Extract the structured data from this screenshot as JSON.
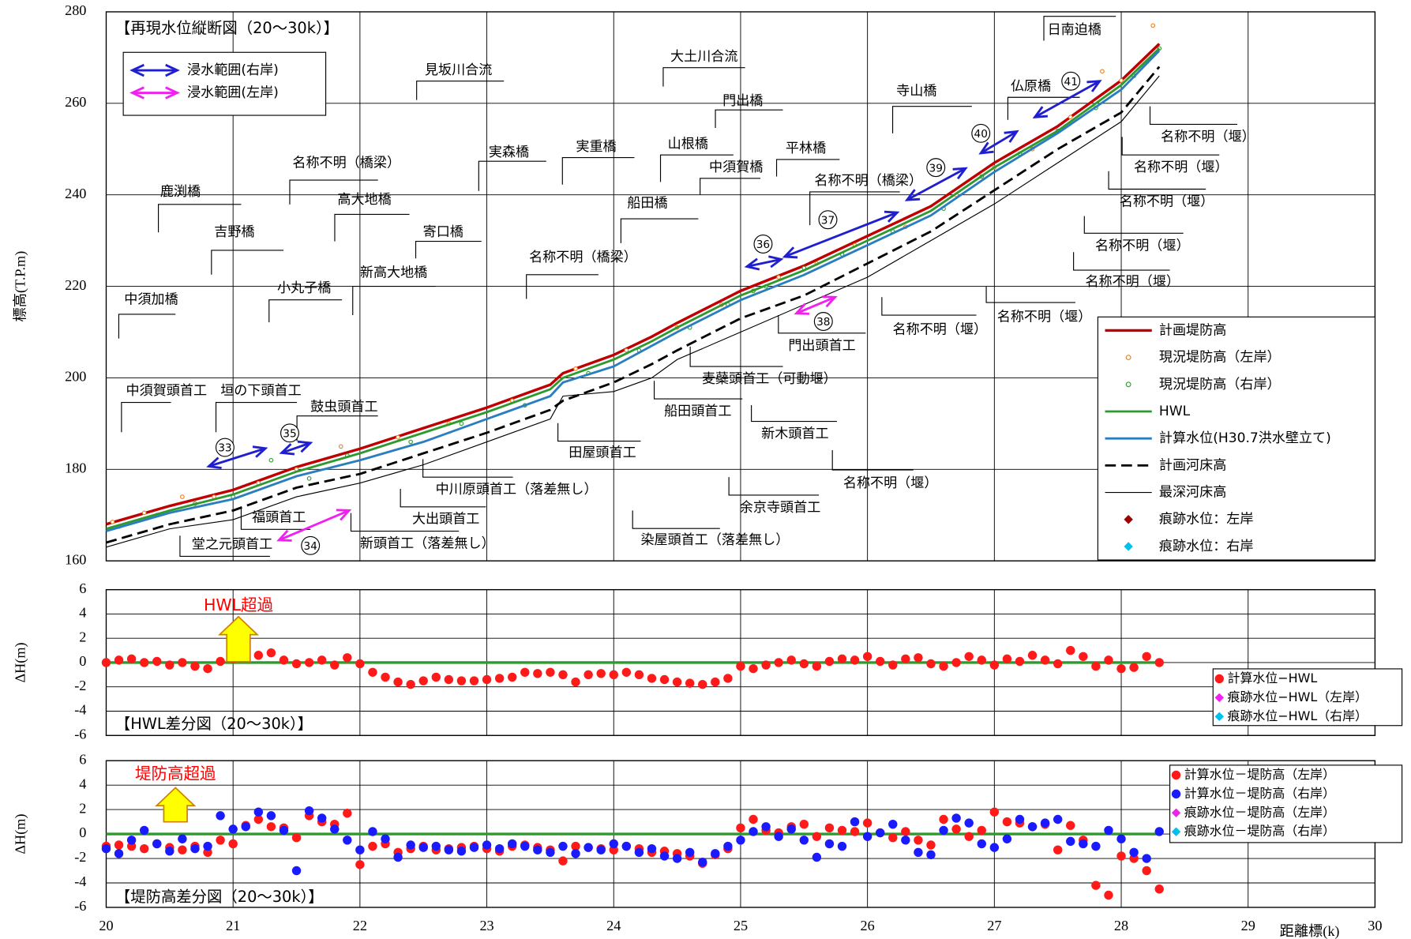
{
  "chart_data": [
    {
      "type": "line",
      "title": "【再現水位縦断図（20～30k）】",
      "y_label": "標高(T.P.m)",
      "xlim": [
        20,
        30
      ],
      "xticks": [
        20,
        21,
        22,
        23,
        24,
        25,
        26,
        27,
        28,
        29,
        30
      ],
      "ylim": [
        160,
        280
      ],
      "yticks": [
        160,
        180,
        200,
        220,
        240,
        260,
        280
      ],
      "grid": true,
      "x": [
        20,
        20.5,
        21,
        21.5,
        22,
        22.5,
        23,
        23.5,
        23.6,
        24,
        24.3,
        24.5,
        25,
        25.5,
        26,
        26.5,
        27,
        27.5,
        28,
        28.3
      ],
      "series": [
        {
          "name": "計画堤防高",
          "type": "line",
          "color": "#c00000",
          "linewidth": 3,
          "values": [
            168,
            172,
            175.5,
            180.5,
            184.5,
            189,
            193.5,
            198.5,
            201,
            205,
            209,
            212,
            219,
            224.5,
            231,
            237.5,
            247,
            255,
            265,
            273
          ]
        },
        {
          "name": "現況堤防高（左岸）",
          "type": "scatter",
          "marker": "circle-open",
          "color": "#f08020",
          "x": [
            20.05,
            20.3,
            20.6,
            20.85,
            21.2,
            21.5,
            21.85,
            22.3,
            22.7,
            23.2,
            23.7,
            24.1,
            24.5,
            24.85,
            25.1,
            25.3,
            25.6,
            25.9,
            26.3,
            26.7,
            27.0,
            27.3,
            27.6,
            27.85,
            28.0,
            28.25
          ],
          "values": [
            168.5,
            170.5,
            174,
            174,
            177,
            180,
            185,
            187,
            190,
            195,
            202,
            206,
            211,
            216,
            219,
            222,
            225,
            229,
            233,
            240,
            246,
            250,
            257,
            267,
            265,
            277
          ]
        },
        {
          "name": "現況堤防高（右岸）",
          "type": "scatter",
          "marker": "circle-open",
          "color": "#30a030",
          "x": [
            20.1,
            20.4,
            20.7,
            21.0,
            21.3,
            21.6,
            21.9,
            22.4,
            22.8,
            23.3,
            23.8,
            24.2,
            24.6,
            24.9,
            25.1,
            25.2,
            25.5,
            25.8,
            26.2,
            26.6,
            26.9,
            27.2,
            27.5,
            27.8,
            28.1,
            28.3
          ],
          "values": [
            167.5,
            170,
            172.5,
            174,
            182,
            178,
            183,
            186,
            190,
            194,
            201,
            206,
            211,
            216,
            219,
            220,
            224,
            227,
            232,
            237,
            244,
            249,
            254,
            259,
            266,
            272
          ]
        },
        {
          "name": "HWL",
          "type": "line",
          "color": "#2e9a2e",
          "linewidth": 2.5,
          "values": [
            167,
            171,
            174.5,
            179.5,
            183.5,
            188,
            192.5,
            197.5,
            200,
            204,
            208,
            211,
            218,
            223.5,
            230,
            236.5,
            246,
            254,
            264,
            272
          ]
        },
        {
          "name": "計算水位(H30.7洪水壁立て)",
          "type": "line",
          "color": "#2a7ec0",
          "linewidth": 2.5,
          "values": [
            166.5,
            170.5,
            173.5,
            178.5,
            182,
            186,
            191,
            196,
            199,
            202.5,
            207,
            210,
            217,
            222.5,
            229,
            235.5,
            245,
            253.5,
            263,
            271.5
          ]
        },
        {
          "name": "計画河床高",
          "type": "line",
          "color": "#000000",
          "linewidth": 2.5,
          "dash": true,
          "values": [
            164,
            168,
            171,
            176,
            179,
            183.5,
            188,
            193,
            195,
            199,
            203,
            206,
            213,
            218,
            225,
            232,
            241,
            250,
            258,
            268
          ]
        },
        {
          "name": "最深河床高",
          "type": "line",
          "color": "#000000",
          "linewidth": 1,
          "values": [
            163,
            167,
            169,
            174,
            177,
            181,
            186,
            191,
            196,
            197,
            200,
            204,
            210,
            216,
            222,
            230,
            238,
            247,
            256,
            266
          ]
        },
        {
          "name": "痕跡水位：左岸",
          "type": "scatter",
          "marker": "diamond",
          "color": "#a00000",
          "values": []
        },
        {
          "name": "痕跡水位：右岸",
          "type": "scatter",
          "marker": "diamond",
          "color": "#00c0f0",
          "values": []
        }
      ],
      "flood_legend": [
        {
          "label": "浸水範囲(右岸)",
          "color": "#1f1fd0"
        },
        {
          "label": "浸水範囲(左岸)",
          "color": "#f020f0"
        }
      ],
      "markers": [
        {
          "label": "33",
          "color": "#1f1fd0"
        },
        {
          "label": "34",
          "color": "#f020f0"
        },
        {
          "label": "35",
          "color": "#1f1fd0"
        },
        {
          "label": "36",
          "color": "#1f1fd0"
        },
        {
          "label": "37",
          "color": "#1f1fd0"
        },
        {
          "label": "38",
          "color": "#f020f0"
        },
        {
          "label": "39",
          "color": "#1f1fd0"
        },
        {
          "label": "40",
          "color": "#1f1fd0"
        },
        {
          "label": "41",
          "color": "#1f1fd0"
        }
      ],
      "annotations": [
        "中須加橋",
        "鹿渕橋",
        "吉野橋",
        "小丸子橋",
        "名称不明（橋梁）",
        "高大地橋",
        "新高大地橋",
        "寄口橋",
        "見坂川合流",
        "実森橋",
        "名称不明（橋梁）",
        "実重橋",
        "船田橋",
        "山根橋",
        "大土川合流",
        "門出橋",
        "中須賀橋",
        "平林橋",
        "名称不明（橋梁）",
        "寺山橋",
        "仏原橋",
        "日南迫橋",
        "名称不明（堰）",
        "名称不明（堰）",
        "名称不明（堰）",
        "名称不明（堰）",
        "名称不明（堰）",
        "名称不明（堰）",
        "名称不明（堰）",
        "門出頭首工",
        "麦蘗頭首工（可動堰）",
        "船田頭首工",
        "新木頭首工",
        "名称不明（堰）",
        "余京寺頭首工",
        "田屋頭首工",
        "中川原頭首工（落差無し）",
        "大出頭首工",
        "新頭首工（落差無し）",
        "染屋頭首工（落差無し）",
        "福頭首工",
        "堂之元頭首工",
        "中須賀頭首工",
        "垣の下頭首工",
        "鼓虫頭首工"
      ]
    },
    {
      "type": "scatter",
      "title": "【HWL差分図（20～30k）】",
      "y_label": "ΔH(m)",
      "annotation": "HWL超過",
      "xlim": [
        20,
        30
      ],
      "xticks": [
        20,
        21,
        22,
        23,
        24,
        25,
        26,
        27,
        28,
        29,
        30
      ],
      "ylim": [
        -6,
        6
      ],
      "yticks": [
        -6,
        -4,
        -2,
        0,
        2,
        4,
        6
      ],
      "grid": true,
      "x": [
        20,
        20.1,
        20.2,
        20.3,
        20.4,
        20.5,
        20.6,
        20.7,
        20.8,
        20.9,
        21,
        21.1,
        21.2,
        21.3,
        21.4,
        21.5,
        21.6,
        21.7,
        21.8,
        21.9,
        22,
        22.1,
        22.2,
        22.3,
        22.4,
        22.5,
        22.6,
        22.7,
        22.8,
        22.9,
        23,
        23.1,
        23.2,
        23.3,
        23.4,
        23.5,
        23.6,
        23.7,
        23.8,
        23.9,
        24,
        24.1,
        24.2,
        24.3,
        24.4,
        24.5,
        24.6,
        24.7,
        24.8,
        24.9,
        25,
        25.1,
        25.2,
        25.3,
        25.4,
        25.5,
        25.6,
        25.7,
        25.8,
        25.9,
        26,
        26.1,
        26.2,
        26.3,
        26.4,
        26.5,
        26.6,
        26.7,
        26.8,
        26.9,
        27,
        27.1,
        27.2,
        27.3,
        27.4,
        27.5,
        27.6,
        27.7,
        27.8,
        27.9,
        28,
        28.1,
        28.2,
        28.3
      ],
      "series": [
        {
          "type": "line",
          "color": "#2e9a2e",
          "linewidth": 3,
          "x": [
            20,
            28.3
          ],
          "values": [
            0,
            0
          ]
        },
        {
          "name": "計算水位−HWL",
          "type": "scatter",
          "marker": "circle",
          "color": "#ff1a1a",
          "values": [
            0,
            0.2,
            0.3,
            0,
            0.1,
            -0.2,
            0,
            -0.3,
            -0.5,
            0.1,
            0.3,
            1.0,
            0.6,
            0.8,
            0.2,
            -0.1,
            0,
            0.2,
            -0.2,
            0.4,
            -0.1,
            -0.8,
            -1.2,
            -1.6,
            -1.8,
            -1.5,
            -1.2,
            -1.4,
            -1.5,
            -1.5,
            -1.4,
            -1.3,
            -1.2,
            -0.8,
            -0.9,
            -0.8,
            -1.0,
            -1.6,
            -1.0,
            -0.9,
            -1.0,
            -0.8,
            -1.0,
            -1.3,
            -1.4,
            -1.6,
            -1.7,
            -1.8,
            -1.6,
            -1.3,
            -0.3,
            -0.5,
            -0.2,
            0,
            0.2,
            -0.1,
            -0.3,
            0.1,
            0.3,
            0.2,
            0.5,
            0.1,
            -0.2,
            0.3,
            0.4,
            -0.1,
            -0.3,
            0,
            0.5,
            0.2,
            -0.2,
            0.3,
            0.1,
            0.6,
            0.2,
            -0.1,
            1.0,
            0.5,
            -0.3,
            0.2,
            -0.5,
            -0.4,
            0.5,
            0
          ]
        },
        {
          "name": "痕跡水位−HWL（左岸）",
          "type": "scatter",
          "marker": "diamond",
          "color": "#f020f0",
          "values": []
        },
        {
          "name": "痕跡水位−HWL（右岸）",
          "type": "scatter",
          "marker": "diamond",
          "color": "#00c0f0",
          "values": []
        }
      ]
    },
    {
      "type": "scatter",
      "title": "【堤防高差分図（20～30k）】",
      "y_label": "ΔH(m)",
      "x_label": "距離標(k)",
      "annotation": "堤防高超過",
      "xlim": [
        20,
        30
      ],
      "xticks": [
        20,
        21,
        22,
        23,
        24,
        25,
        26,
        27,
        28,
        29,
        30
      ],
      "ylim": [
        -6,
        6
      ],
      "yticks": [
        -6,
        -4,
        -2,
        0,
        2,
        4,
        6
      ],
      "grid": true,
      "x": [
        20,
        20.1,
        20.2,
        20.3,
        20.4,
        20.5,
        20.6,
        20.7,
        20.8,
        20.9,
        21,
        21.1,
        21.2,
        21.3,
        21.4,
        21.5,
        21.6,
        21.7,
        21.8,
        21.9,
        22,
        22.1,
        22.2,
        22.3,
        22.4,
        22.5,
        22.6,
        22.7,
        22.8,
        22.9,
        23,
        23.1,
        23.2,
        23.3,
        23.4,
        23.5,
        23.6,
        23.7,
        23.8,
        23.9,
        24,
        24.1,
        24.2,
        24.3,
        24.4,
        24.5,
        24.6,
        24.7,
        24.8,
        24.9,
        25,
        25.1,
        25.2,
        25.3,
        25.4,
        25.5,
        25.6,
        25.7,
        25.8,
        25.9,
        26,
        26.1,
        26.2,
        26.3,
        26.4,
        26.5,
        26.6,
        26.7,
        26.8,
        26.9,
        27,
        27.1,
        27.2,
        27.3,
        27.4,
        27.5,
        27.6,
        27.7,
        27.8,
        27.9,
        28,
        28.1,
        28.2,
        28.3
      ],
      "series": [
        {
          "type": "line",
          "color": "#2e9a2e",
          "linewidth": 3,
          "x": [
            20,
            28.3
          ],
          "values": [
            0,
            0
          ]
        },
        {
          "name": "計算水位－堤防高（左岸）",
          "type": "scatter",
          "marker": "circle",
          "color": "#ff1a1a",
          "values": [
            -1.0,
            -0.9,
            -1.0,
            -1.2,
            -0.8,
            -1.1,
            -1.3,
            -1.0,
            -1.5,
            -0.5,
            -0.8,
            0.7,
            1.2,
            0.6,
            0.5,
            -0.3,
            1.5,
            1.0,
            0.8,
            1.7,
            -2.5,
            -1.0,
            -0.8,
            -1.5,
            -1.2,
            -1.0,
            -1.3,
            -1.2,
            -1.1,
            -1.0,
            -1.2,
            -1.4,
            -1.0,
            -0.9,
            -1.1,
            -1.3,
            -2.2,
            -1.0,
            -1.1,
            -1.2,
            -1.3,
            -1.0,
            -1.2,
            -1.5,
            -1.4,
            -1.6,
            -1.8,
            -2.4,
            -1.7,
            -1.2,
            0.5,
            1.2,
            0.3,
            0.1,
            0.6,
            0.8,
            -0.2,
            0.5,
            0.3,
            0.2,
            0.9,
            0.1,
            -0.3,
            0.2,
            -0.5,
            -0.9,
            1.2,
            0.4,
            -0.2,
            0.3,
            1.8,
            1.0,
            0.9,
            0.6,
            0.8,
            -1.3,
            0.7,
            -0.5,
            -4.2,
            -5.0,
            -1.8,
            -2.0,
            -3.0,
            -4.5
          ]
        },
        {
          "name": "計算水位－堤防高（右岸）",
          "type": "scatter",
          "marker": "circle",
          "color": "#1a1aff",
          "values": [
            -1.2,
            -1.6,
            -0.5,
            0.3,
            -0.8,
            -1.4,
            -0.4,
            -1.2,
            -1.0,
            1.5,
            0.4,
            0.6,
            1.8,
            1.5,
            0.3,
            -3.0,
            1.9,
            1.3,
            0.4,
            -0.5,
            -1.3,
            0.2,
            -0.4,
            -1.9,
            -0.9,
            -1.1,
            -1.0,
            -1.3,
            -1.4,
            -1.1,
            -0.9,
            -1.2,
            -0.8,
            -1.0,
            -1.3,
            -1.5,
            -1.0,
            -1.6,
            -1.1,
            -1.3,
            -0.8,
            -1.0,
            -1.5,
            -1.2,
            -1.8,
            -2.0,
            -1.5,
            -2.3,
            -1.6,
            -1.0,
            -0.5,
            0.2,
            0.6,
            -0.2,
            0.4,
            -0.5,
            -1.9,
            -0.8,
            -1.0,
            1.0,
            -0.2,
            0.1,
            0.8,
            -0.5,
            -1.5,
            -1.7,
            0.3,
            1.3,
            0.9,
            -0.8,
            -1.1,
            -0.4,
            1.2,
            0.6,
            0.9,
            1.2,
            -0.6,
            -0.8,
            -1.0,
            0.3,
            -0.4,
            -1.5,
            -2.0,
            0.2
          ]
        },
        {
          "name": "痕跡水位－堤防高（左岸）",
          "type": "scatter",
          "marker": "diamond",
          "color": "#f020f0",
          "values": []
        },
        {
          "name": "痕跡水位－堤防高（右岸）",
          "type": "scatter",
          "marker": "diamond",
          "color": "#00c0f0",
          "values": []
        }
      ]
    }
  ]
}
